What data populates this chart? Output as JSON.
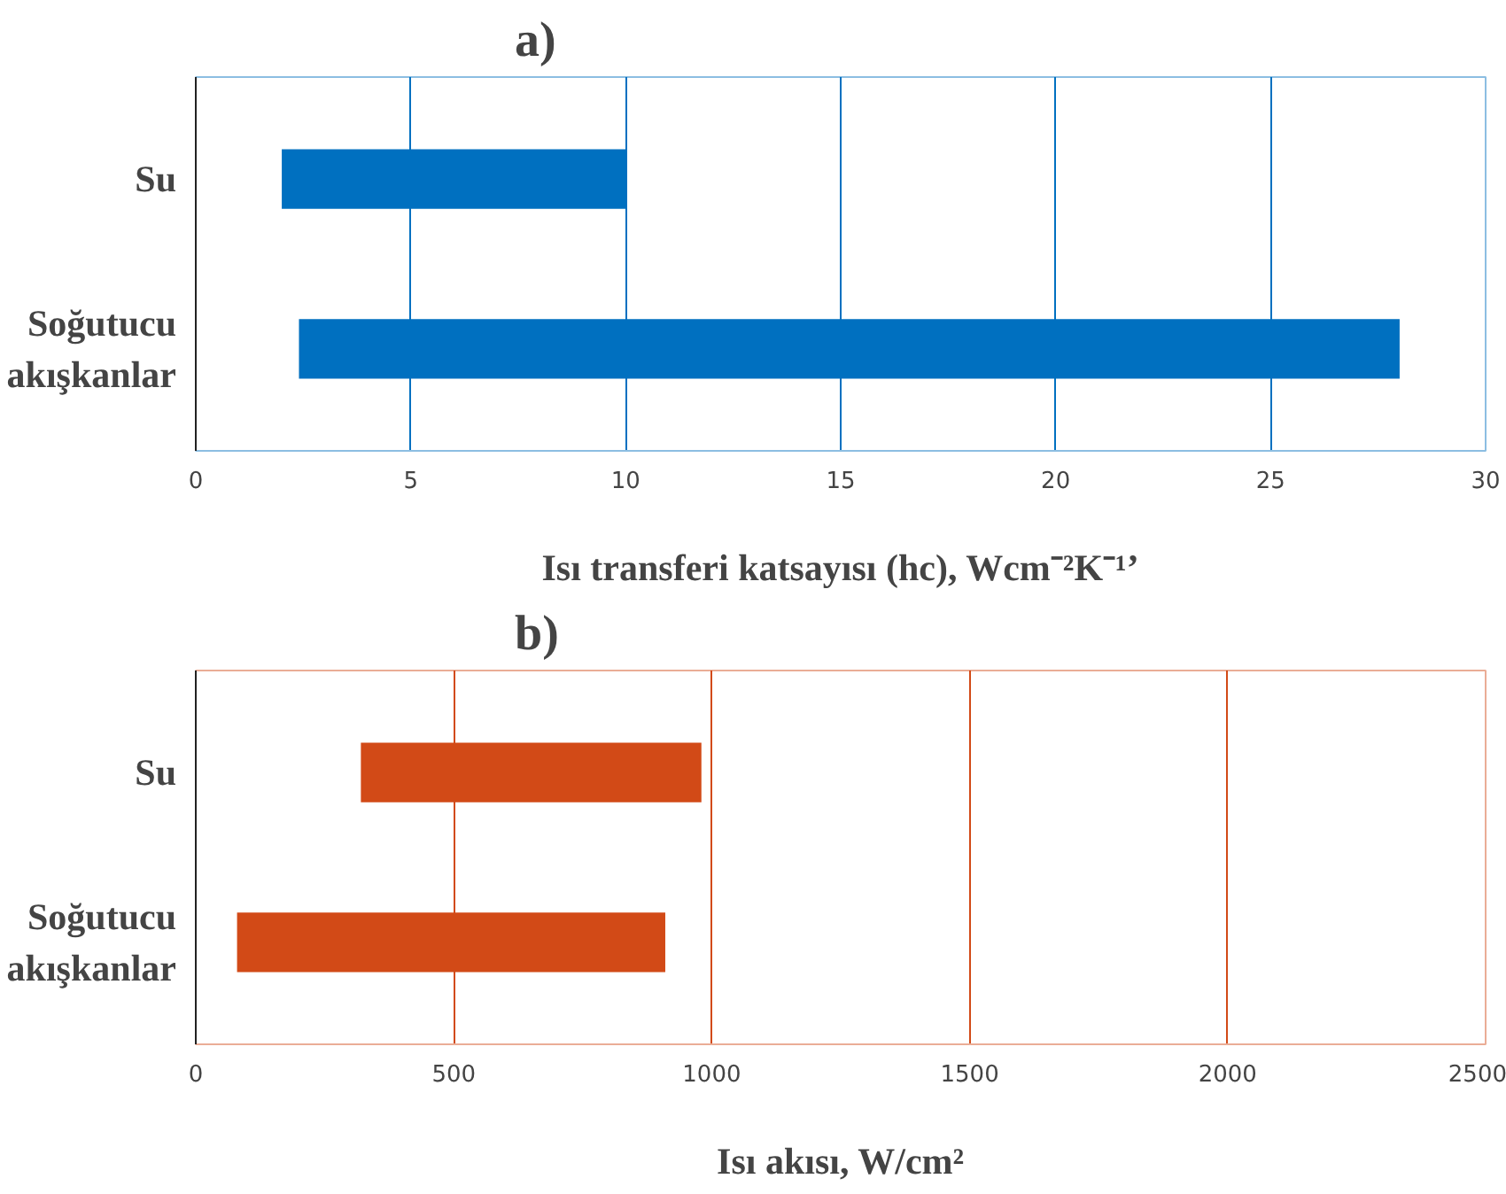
{
  "chart_data": [
    {
      "type": "bar",
      "orientation": "horizontal",
      "title": "a)",
      "xlabel": "Isı transferi katsayısı (hc), Wcm⁻²K⁻¹’",
      "categories": [
        "Su",
        "Soğutucu\nakışkanlar"
      ],
      "base": [
        2.0,
        2.4
      ],
      "values": [
        8.0,
        25.6
      ],
      "color": "#0070c0",
      "xlim": [
        0,
        30
      ],
      "xticks": [
        0,
        5,
        10,
        15,
        20,
        25,
        30
      ],
      "grid": "x"
    },
    {
      "type": "bar",
      "orientation": "horizontal",
      "title": "b)",
      "xlabel": "Isı akısı, W/cm²",
      "categories": [
        "Su",
        "Soğutucu\nakışkanlar"
      ],
      "base": [
        320,
        80
      ],
      "values": [
        660,
        830
      ],
      "color": "#d24a17",
      "xlim": [
        0,
        2500
      ],
      "xticks": [
        0,
        500,
        1000,
        1500,
        2000,
        2500
      ],
      "grid": "x"
    }
  ]
}
